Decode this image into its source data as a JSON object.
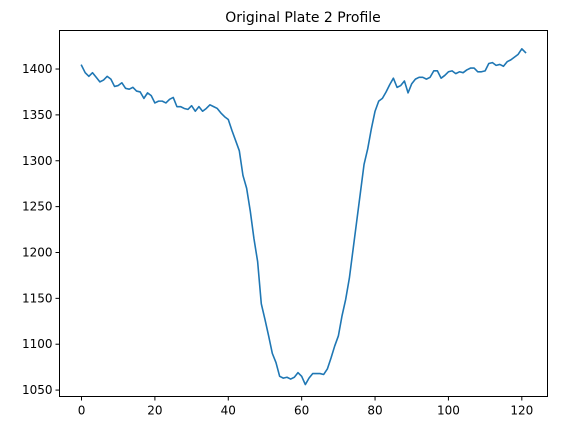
{
  "chart_data": {
    "type": "line",
    "title": "Original Plate 2 Profile",
    "xlabel": "",
    "ylabel": "",
    "xlim": [
      -6,
      127
    ],
    "ylim": [
      1043,
      1442
    ],
    "x_ticks": [
      0,
      20,
      40,
      60,
      80,
      100,
      120
    ],
    "y_ticks": [
      1050,
      1100,
      1150,
      1200,
      1250,
      1300,
      1350,
      1400
    ],
    "grid": false,
    "legend": false,
    "series": [
      {
        "color": "#1f77b4",
        "x": [
          0,
          1,
          2,
          3,
          4,
          5,
          6,
          7,
          8,
          9,
          10,
          11,
          12,
          13,
          14,
          15,
          16,
          17,
          18,
          19,
          20,
          21,
          22,
          23,
          24,
          25,
          26,
          27,
          28,
          29,
          30,
          31,
          32,
          33,
          34,
          35,
          36,
          37,
          38,
          39,
          40,
          41,
          42,
          43,
          44,
          45,
          46,
          47,
          48,
          49,
          50,
          51,
          52,
          53,
          54,
          55,
          56,
          57,
          58,
          59,
          60,
          61,
          62,
          63,
          64,
          65,
          66,
          67,
          68,
          69,
          70,
          71,
          72,
          73,
          74,
          75,
          76,
          77,
          78,
          79,
          80,
          81,
          82,
          83,
          84,
          85,
          86,
          87,
          88,
          89,
          90,
          91,
          92,
          93,
          94,
          95,
          96,
          97,
          98,
          99,
          100,
          101,
          102,
          103,
          104,
          105,
          106,
          107,
          108,
          109,
          110,
          111,
          112,
          113,
          114,
          115,
          116,
          117,
          118,
          119,
          120,
          121
        ],
        "values": [
          1404,
          1396,
          1392,
          1396,
          1391,
          1386,
          1388,
          1392,
          1389,
          1381,
          1382,
          1385,
          1379,
          1378,
          1380,
          1376,
          1375,
          1368,
          1374,
          1371,
          1363,
          1365,
          1365,
          1363,
          1367,
          1369,
          1359,
          1359,
          1357,
          1356,
          1360,
          1354,
          1359,
          1354,
          1357,
          1361,
          1359,
          1357,
          1352,
          1348,
          1345,
          1333,
          1322,
          1311,
          1284,
          1270,
          1245,
          1215,
          1190,
          1144,
          1127,
          1109,
          1090,
          1080,
          1065,
          1063,
          1064,
          1062,
          1064,
          1069,
          1065,
          1056,
          1063,
          1068,
          1068,
          1068,
          1067,
          1073,
          1085,
          1098,
          1109,
          1131,
          1149,
          1172,
          1203,
          1234,
          1265,
          1296,
          1313,
          1335,
          1354,
          1365,
          1368,
          1375,
          1383,
          1390,
          1380,
          1382,
          1387,
          1374,
          1384,
          1389,
          1391,
          1391,
          1389,
          1391,
          1398,
          1398,
          1390,
          1393,
          1397,
          1398,
          1395,
          1397,
          1396,
          1399,
          1401,
          1401,
          1397,
          1397,
          1398,
          1406,
          1407,
          1404,
          1405,
          1403,
          1408,
          1410,
          1413,
          1416,
          1422,
          1418
        ]
      }
    ]
  }
}
